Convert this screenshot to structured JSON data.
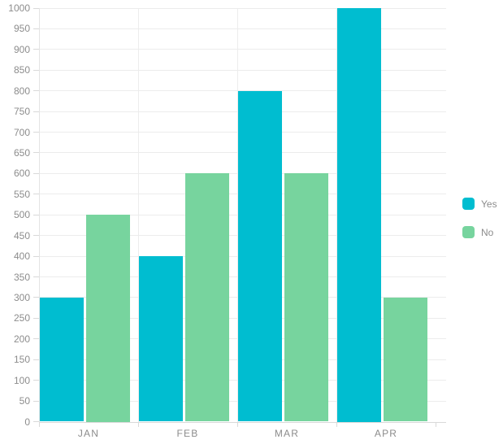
{
  "chart_data": {
    "type": "bar",
    "title": "",
    "xlabel": "",
    "ylabel": "",
    "categories": [
      "JAN",
      "FEB",
      "MAR",
      "APR"
    ],
    "series": [
      {
        "name": "Yes",
        "color": "#00bdd0",
        "values": [
          300,
          400,
          800,
          1000
        ]
      },
      {
        "name": "No",
        "color": "#77d49e",
        "values": [
          500,
          600,
          600,
          300
        ]
      }
    ],
    "ylim": [
      0,
      1000
    ],
    "ytick_step": 50,
    "yticks": [
      0,
      50,
      100,
      150,
      200,
      250,
      300,
      350,
      400,
      450,
      500,
      550,
      600,
      650,
      700,
      750,
      800,
      850,
      900,
      950,
      1000
    ],
    "grid": true,
    "legend_position": "right"
  }
}
